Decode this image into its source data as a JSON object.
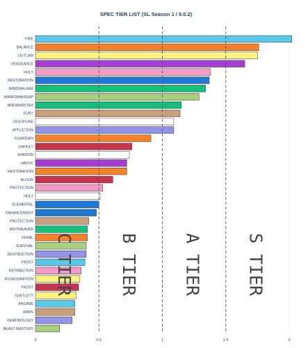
{
  "chart_data": {
    "type": "bar",
    "orientation": "horizontal",
    "title": "SPEC TIER LIST (SL Season 1 / 9.0.2)",
    "xlabel": "",
    "xlim": [
      0,
      2.1
    ],
    "xticks": [
      0,
      0.5,
      1,
      1.5,
      2
    ],
    "grid": true,
    "tier_lines": [
      0.5,
      1,
      1.5
    ],
    "tier_labels": [
      {
        "text": "C TIER",
        "x": 0.22
      },
      {
        "text": "B TIER",
        "x": 0.73
      },
      {
        "text": "A TIER",
        "x": 1.23
      },
      {
        "text": "S TIER",
        "x": 1.73
      }
    ],
    "bars": [
      {
        "label": "FIRE",
        "value": 2.02,
        "color": "#5bc8e8"
      },
      {
        "label": "BALANCE",
        "value": 1.76,
        "color": "#f5822a"
      },
      {
        "label": "OUTLAW",
        "value": 1.75,
        "color": "#fff380"
      },
      {
        "label": "VENGEANCE",
        "value": 1.65,
        "color": "#a63fd1"
      },
      {
        "label": "HOLY",
        "value": 1.38,
        "color": "#f59bc8"
      },
      {
        "label": "RESTORATION",
        "value": 1.37,
        "color": "#1f7ad6"
      },
      {
        "label": "WINDWALKER",
        "value": 1.34,
        "color": "#17c07a"
      },
      {
        "label": "MARKSMANSHIP",
        "value": 1.29,
        "color": "#a9d080"
      },
      {
        "label": "BREWMASTER",
        "value": 1.15,
        "color": "#17c07a"
      },
      {
        "label": "FURY",
        "value": 1.14,
        "color": "#c8a07c"
      },
      {
        "label": "DISCIPLINE",
        "value": 1.09,
        "color": "#ffffff"
      },
      {
        "label": "AFFLICTION",
        "value": 1.09,
        "color": "#9393e8"
      },
      {
        "label": "GUARDIAN",
        "value": 0.91,
        "color": "#f5822a"
      },
      {
        "label": "UNHOLY",
        "value": 0.76,
        "color": "#c8334d"
      },
      {
        "label": "SHADOW",
        "value": 0.74,
        "color": "#ffffff"
      },
      {
        "label": "HAVOC",
        "value": 0.72,
        "color": "#a63fd1"
      },
      {
        "label": "RESTORATION",
        "value": 0.72,
        "color": "#f5822a"
      },
      {
        "label": "BLOOD",
        "value": 0.61,
        "color": "#c8334d"
      },
      {
        "label": "PROTECTION",
        "value": 0.53,
        "color": "#f59bc8"
      },
      {
        "label": "HOLY",
        "value": 0.51,
        "color": "#ffffff"
      },
      {
        "label": "ELEMENTAL",
        "value": 0.5,
        "color": "#1f7ad6"
      },
      {
        "label": "ENHANCEMENT",
        "value": 0.48,
        "color": "#1f7ad6"
      },
      {
        "label": "PROTECTION",
        "value": 0.42,
        "color": "#c8a07c"
      },
      {
        "label": "MISTWEAVER",
        "value": 0.41,
        "color": "#17c07a"
      },
      {
        "label": "FERAL",
        "value": 0.41,
        "color": "#f5822a"
      },
      {
        "label": "SURVIVAL",
        "value": 0.4,
        "color": "#a9d080"
      },
      {
        "label": "DESTRUCTION",
        "value": 0.4,
        "color": "#9393e8"
      },
      {
        "label": "FROST",
        "value": 0.39,
        "color": "#5bc8e8"
      },
      {
        "label": "RETRIBUTION",
        "value": 0.36,
        "color": "#f59bc8"
      },
      {
        "label": "ASSASSINATION",
        "value": 0.35,
        "color": "#fff380"
      },
      {
        "label": "FROST",
        "value": 0.34,
        "color": "#c8334d"
      },
      {
        "label": "SUBTLETY",
        "value": 0.32,
        "color": "#fff380"
      },
      {
        "label": "ARCANE",
        "value": 0.31,
        "color": "#5bc8e8"
      },
      {
        "label": "ARMS",
        "value": 0.31,
        "color": "#c8a07c"
      },
      {
        "label": "DEMONOLOGY",
        "value": 0.29,
        "color": "#9393e8"
      },
      {
        "label": "BEAST MASTERY",
        "value": 0.19,
        "color": "#a9d080"
      }
    ],
    "bar_edge_color": "#333333",
    "tier_line_color": "#555555",
    "grid_color": "#ebebeb"
  }
}
